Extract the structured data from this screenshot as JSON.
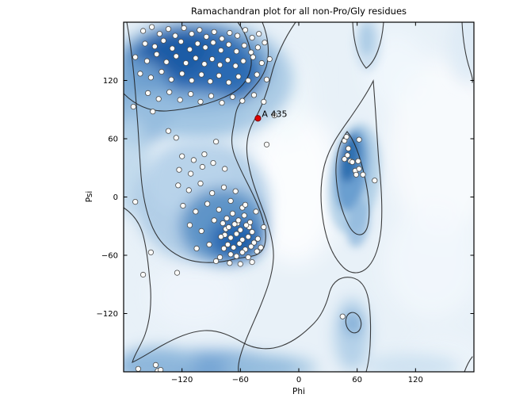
{
  "chart_data": {
    "type": "scatter",
    "title": "Ramachandran plot for all non-Pro/Gly residues",
    "xlabel": "Phi",
    "ylabel": "Psi",
    "xlim": [
      -180,
      180
    ],
    "ylim": [
      -180,
      180
    ],
    "xticks": [
      -120,
      -60,
      0,
      60,
      120
    ],
    "yticks": [
      120,
      60,
      0,
      -60,
      -120
    ],
    "xtick_labels": [
      "−120",
      "−60",
      "0",
      "60",
      "120"
    ],
    "ytick_labels": [
      "120",
      "60",
      "0",
      "−60",
      "−120"
    ],
    "grid": false,
    "legend": "none",
    "background_style": "kernel-density shading (Blues colormap) with black contour lines outlining favoured/allowed regions",
    "marker_style": {
      "fill": "#fcfcfa",
      "edge": "#4a4a4a",
      "radius_px": 3.2
    },
    "highlight": {
      "label": "A 435",
      "phi": -42,
      "psi": 81,
      "fill": "#e00000",
      "edge": "#7a0000"
    },
    "colors": {
      "density_dark": "#1d5da7",
      "density_mid": "#5e94c8",
      "density_light": "#a8c8e4",
      "density_pale": "#e8f1f8",
      "near_white": "#fbfdfe",
      "contour": "#1c1c1c"
    },
    "points": [
      [
        -160,
        171
      ],
      [
        -151,
        175
      ],
      [
        -143,
        168
      ],
      [
        -134,
        173
      ],
      [
        -127,
        166
      ],
      [
        -118,
        174
      ],
      [
        -110,
        168
      ],
      [
        -102,
        172
      ],
      [
        -95,
        165
      ],
      [
        -87,
        170
      ],
      [
        -79,
        163
      ],
      [
        -71,
        169
      ],
      [
        -63,
        166
      ],
      [
        -55,
        172
      ],
      [
        -48,
        164
      ],
      [
        -41,
        168
      ],
      [
        -158,
        158
      ],
      [
        -148,
        155
      ],
      [
        -139,
        161
      ],
      [
        -130,
        153
      ],
      [
        -121,
        160
      ],
      [
        -112,
        152
      ],
      [
        -104,
        158
      ],
      [
        -96,
        154
      ],
      [
        -88,
        159
      ],
      [
        -80,
        151
      ],
      [
        -72,
        157
      ],
      [
        -64,
        150
      ],
      [
        -56,
        156
      ],
      [
        -49,
        149
      ],
      [
        -42,
        154
      ],
      [
        -35,
        159
      ],
      [
        -168,
        144
      ],
      [
        -156,
        140
      ],
      [
        -146,
        147
      ],
      [
        -136,
        139
      ],
      [
        -126,
        145
      ],
      [
        -116,
        138
      ],
      [
        -106,
        143
      ],
      [
        -97,
        137
      ],
      [
        -89,
        142
      ],
      [
        -81,
        136
      ],
      [
        -73,
        141
      ],
      [
        -65,
        135
      ],
      [
        -57,
        140
      ],
      [
        -47,
        144
      ],
      [
        -38,
        138
      ],
      [
        -30,
        142
      ],
      [
        -163,
        127
      ],
      [
        -152,
        123
      ],
      [
        -141,
        129
      ],
      [
        -131,
        121
      ],
      [
        -120,
        127
      ],
      [
        -110,
        120
      ],
      [
        -100,
        126
      ],
      [
        -91,
        119
      ],
      [
        -82,
        125
      ],
      [
        -72,
        118
      ],
      [
        -62,
        124
      ],
      [
        -52,
        120
      ],
      [
        -43,
        126
      ],
      [
        -33,
        121
      ],
      [
        -155,
        107
      ],
      [
        -144,
        101
      ],
      [
        -133,
        108
      ],
      [
        -122,
        100
      ],
      [
        -111,
        106
      ],
      [
        -101,
        98
      ],
      [
        -90,
        104
      ],
      [
        -79,
        97
      ],
      [
        -68,
        103
      ],
      [
        -58,
        99
      ],
      [
        -46,
        105
      ],
      [
        -36,
        98
      ],
      [
        -170,
        93
      ],
      [
        -150,
        88
      ],
      [
        -134,
        68
      ],
      [
        -126,
        61
      ],
      [
        -85,
        57
      ],
      [
        -33,
        54
      ],
      [
        -25,
        84
      ],
      [
        -120,
        42
      ],
      [
        -108,
        38
      ],
      [
        -97,
        44
      ],
      [
        -123,
        28
      ],
      [
        -111,
        24
      ],
      [
        -99,
        31
      ],
      [
        -88,
        35
      ],
      [
        -76,
        29
      ],
      [
        -124,
        12
      ],
      [
        -113,
        7
      ],
      [
        -101,
        14
      ],
      [
        -89,
        4
      ],
      [
        -77,
        10
      ],
      [
        -65,
        6
      ],
      [
        -119,
        -9
      ],
      [
        -106,
        -15
      ],
      [
        -94,
        -7
      ],
      [
        -82,
        -13
      ],
      [
        -70,
        -4
      ],
      [
        -58,
        -11
      ],
      [
        -112,
        -29
      ],
      [
        -100,
        -35
      ],
      [
        -87,
        -24
      ],
      [
        -75,
        -33
      ],
      [
        -63,
        -27
      ],
      [
        -51,
        -31
      ],
      [
        -92,
        -49
      ],
      [
        -105,
        -53
      ],
      [
        -168,
        -5
      ],
      [
        -152,
        -57
      ],
      [
        -74,
        -22
      ],
      [
        -68,
        -17
      ],
      [
        -62,
        -24
      ],
      [
        -56,
        -19
      ],
      [
        -50,
        -26
      ],
      [
        -72,
        -31
      ],
      [
        -66,
        -28
      ],
      [
        -60,
        -34
      ],
      [
        -54,
        -29
      ],
      [
        -48,
        -36
      ],
      [
        -76,
        -39
      ],
      [
        -70,
        -42
      ],
      [
        -64,
        -38
      ],
      [
        -58,
        -44
      ],
      [
        -52,
        -41
      ],
      [
        -46,
        -47
      ],
      [
        -73,
        -49
      ],
      [
        -67,
        -52
      ],
      [
        -61,
        -48
      ],
      [
        -55,
        -54
      ],
      [
        -49,
        -51
      ],
      [
        -43,
        -56
      ],
      [
        -70,
        -59
      ],
      [
        -64,
        -61
      ],
      [
        -58,
        -57
      ],
      [
        -52,
        -62
      ],
      [
        -78,
        -27
      ],
      [
        -80,
        -41
      ],
      [
        -77,
        -53
      ],
      [
        -81,
        -62
      ],
      [
        -42,
        -43
      ],
      [
        -39,
        -52
      ],
      [
        -85,
        -66
      ],
      [
        -60,
        -69
      ],
      [
        -48,
        -67
      ],
      [
        -71,
        -68
      ],
      [
        -55,
        -8
      ],
      [
        -44,
        -15
      ],
      [
        -36,
        -31
      ],
      [
        -160,
        -80
      ],
      [
        -125,
        -78
      ],
      [
        47,
        58
      ],
      [
        49,
        62
      ],
      [
        62,
        59
      ],
      [
        51,
        50
      ],
      [
        50,
        43
      ],
      [
        47,
        39
      ],
      [
        53,
        37
      ],
      [
        55,
        36
      ],
      [
        61,
        37
      ],
      [
        58,
        27
      ],
      [
        62,
        29
      ],
      [
        59,
        23
      ],
      [
        66,
        23
      ],
      [
        78,
        17
      ],
      [
        -165,
        -177
      ],
      [
        -147,
        -173
      ],
      [
        -145,
        -179
      ],
      [
        -142,
        -178
      ],
      [
        45,
        -123
      ]
    ]
  }
}
